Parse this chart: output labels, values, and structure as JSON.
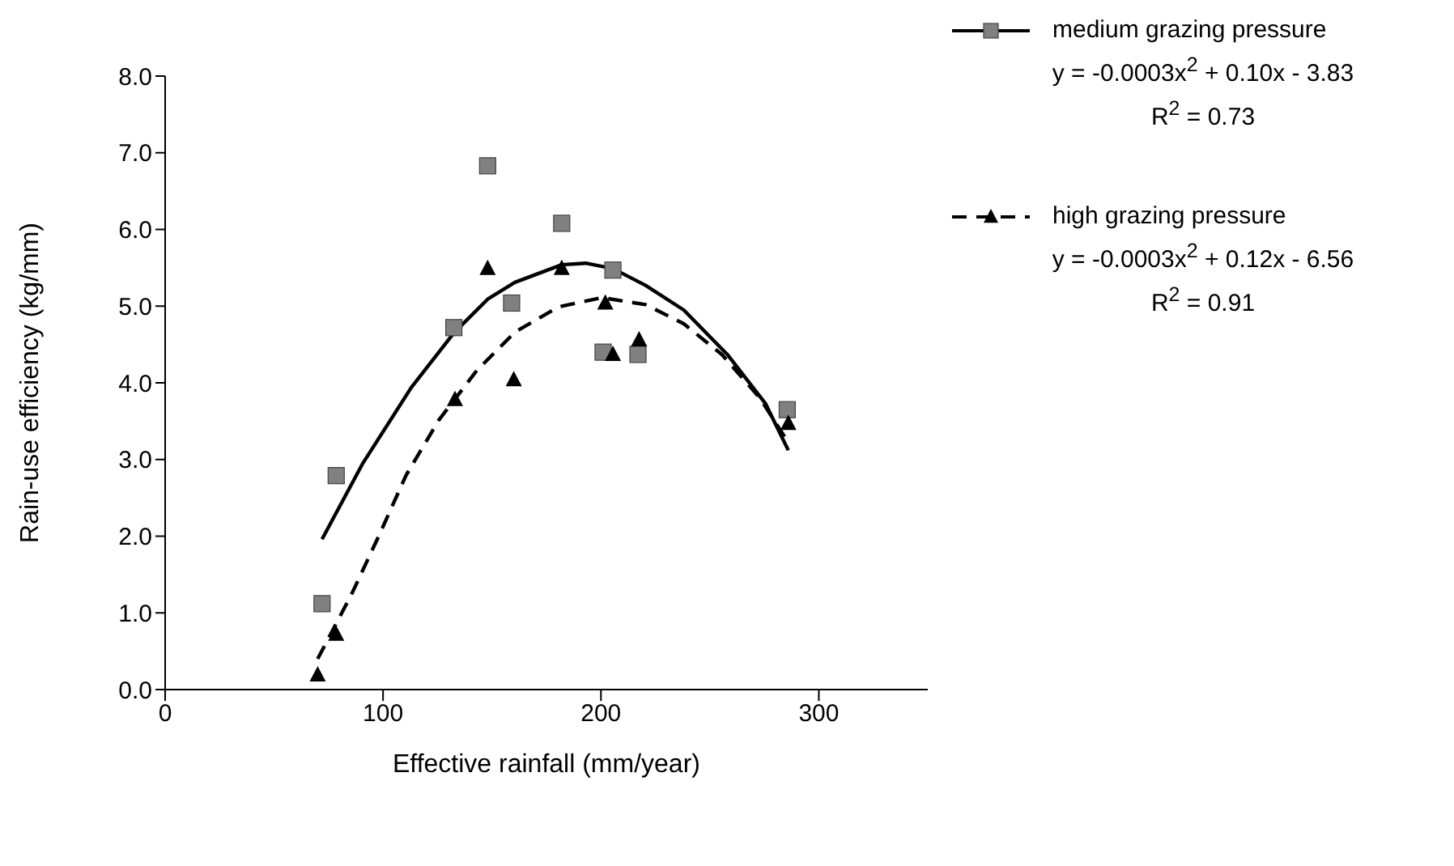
{
  "chart_data": {
    "type": "scatter",
    "xlabel": "Effective rainfall (mm/year)",
    "ylabel": "Rain-use efficiency (kg/mm)",
    "xlim": [
      0,
      350
    ],
    "xticks": [
      0,
      100,
      200,
      300
    ],
    "ylim": [
      0,
      8
    ],
    "yticks": [
      {
        "value": 0,
        "label": "0.0"
      },
      {
        "value": 1,
        "label": "1.0"
      },
      {
        "value": 2,
        "label": "2.0"
      },
      {
        "value": 3,
        "label": "3.0"
      },
      {
        "value": 4,
        "label": "4.0"
      },
      {
        "value": 5,
        "label": "5.0"
      },
      {
        "value": 6,
        "label": "6.0"
      },
      {
        "value": 7,
        "label": "7.0"
      },
      {
        "value": 8,
        "label": "8.0"
      }
    ],
    "grid": false,
    "legend": "top right",
    "series": [
      {
        "name": "medium grazing pressure",
        "marker": "square",
        "color": "#808080",
        "x": [
          72,
          78.5,
          132.5,
          148,
          159,
          182,
          205.5,
          201,
          217,
          285.5
        ],
        "values": [
          1.12,
          2.79,
          4.72,
          6.83,
          5.04,
          6.08,
          5.47,
          4.4,
          4.37,
          3.65
        ]
      },
      {
        "type": "line",
        "line_style": "solid",
        "color": "#000000",
        "x": [
          72,
          90.5,
          113,
          132.5,
          148,
          160.5,
          182,
          193,
          205.5,
          220.5,
          238,
          258,
          275.5,
          286
        ],
        "values": [
          1.96,
          2.94,
          3.94,
          4.65,
          5.09,
          5.31,
          5.54,
          5.56,
          5.49,
          5.27,
          4.95,
          4.37,
          3.73,
          3.12
        ]
      },
      {
        "name": "high grazing pressure",
        "marker": "triangle",
        "color": "#000000",
        "x": [
          70,
          78.5,
          133,
          148,
          160,
          182,
          202,
          205.5,
          217.5,
          286
        ],
        "values": [
          0.19,
          0.72,
          3.78,
          5.49,
          4.04,
          5.49,
          5.04,
          4.37,
          4.56,
          3.47
        ]
      },
      {
        "type": "line",
        "line_style": "dashed",
        "color": "#000000",
        "x": [
          70,
          85.5,
          98,
          110.5,
          125.5,
          143,
          160.5,
          180.5,
          200.5,
          220.5,
          238,
          255.5,
          273,
          286
        ],
        "values": [
          0.4,
          1.24,
          2.0,
          2.79,
          3.51,
          4.16,
          4.66,
          4.99,
          5.11,
          5.02,
          4.77,
          4.37,
          3.8,
          3.22
        ]
      }
    ],
    "annotations": [
      "y = -0.0003x$^{2}$ + 0.10x - 3.83",
      "R$^{2}$ = 0.73",
      "y = -0.0003x$^{2}$ + 0.12x - 6.56",
      "R$^{2}$ = 0.91"
    ]
  }
}
